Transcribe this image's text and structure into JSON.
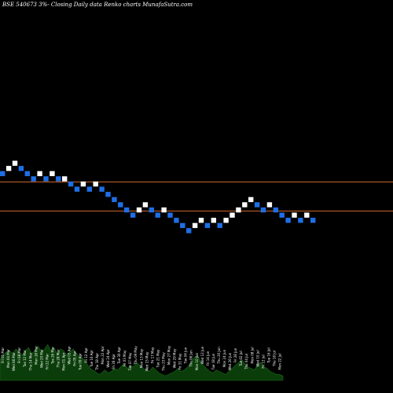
{
  "title": "BSE 540673 3%-  Closing Daily data  Renko  charts MunafaSutra.com",
  "colors": {
    "background": "#000000",
    "up_brick": "#ffffff",
    "down_brick": "#1e6fe6",
    "reference_line": "#c8642a",
    "volume": "#0b3d0b",
    "volume_outline": "#1a6a1a"
  },
  "chart_data": {
    "type": "renko",
    "bricks": [
      {
        "level": 14,
        "dir": "down"
      },
      {
        "level": 15,
        "dir": "up"
      },
      {
        "level": 16,
        "dir": "up"
      },
      {
        "level": 15,
        "dir": "down"
      },
      {
        "level": 14,
        "dir": "down"
      },
      {
        "level": 13,
        "dir": "down"
      },
      {
        "level": 14,
        "dir": "up"
      },
      {
        "level": 13,
        "dir": "down"
      },
      {
        "level": 14,
        "dir": "up"
      },
      {
        "level": 13,
        "dir": "down"
      },
      {
        "level": 13,
        "dir": "up"
      },
      {
        "level": 12,
        "dir": "down"
      },
      {
        "level": 11,
        "dir": "down"
      },
      {
        "level": 12,
        "dir": "up"
      },
      {
        "level": 11,
        "dir": "down"
      },
      {
        "level": 12,
        "dir": "up"
      },
      {
        "level": 11,
        "dir": "down"
      },
      {
        "level": 10,
        "dir": "down"
      },
      {
        "level": 9,
        "dir": "down"
      },
      {
        "level": 8,
        "dir": "down"
      },
      {
        "level": 7,
        "dir": "down"
      },
      {
        "level": 6,
        "dir": "down"
      },
      {
        "level": 7,
        "dir": "up"
      },
      {
        "level": 8,
        "dir": "up"
      },
      {
        "level": 7,
        "dir": "down"
      },
      {
        "level": 6,
        "dir": "down"
      },
      {
        "level": 7,
        "dir": "up"
      },
      {
        "level": 6,
        "dir": "down"
      },
      {
        "level": 5,
        "dir": "down"
      },
      {
        "level": 4,
        "dir": "down"
      },
      {
        "level": 3,
        "dir": "down"
      },
      {
        "level": 4,
        "dir": "up"
      },
      {
        "level": 5,
        "dir": "up"
      },
      {
        "level": 4,
        "dir": "down"
      },
      {
        "level": 5,
        "dir": "up"
      },
      {
        "level": 4,
        "dir": "down"
      },
      {
        "level": 5,
        "dir": "up"
      },
      {
        "level": 6,
        "dir": "up"
      },
      {
        "level": 7,
        "dir": "up"
      },
      {
        "level": 8,
        "dir": "up"
      },
      {
        "level": 9,
        "dir": "up"
      },
      {
        "level": 8,
        "dir": "down"
      },
      {
        "level": 7,
        "dir": "down"
      },
      {
        "level": 8,
        "dir": "up"
      },
      {
        "level": 7,
        "dir": "down"
      },
      {
        "level": 6,
        "dir": "down"
      },
      {
        "level": 5,
        "dir": "down"
      },
      {
        "level": 6,
        "dir": "up"
      },
      {
        "level": 5,
        "dir": "down"
      },
      {
        "level": 6,
        "dir": "up"
      },
      {
        "level": 5,
        "dir": "down"
      }
    ],
    "reference_lines": [
      {
        "name": "upper",
        "level": 12.4
      },
      {
        "name": "lower",
        "level": 6.8
      }
    ],
    "volume": [
      14,
      17,
      19,
      20,
      18,
      21,
      19,
      17,
      20,
      22,
      18,
      20,
      23,
      19,
      21,
      24,
      20,
      22,
      18,
      21,
      20,
      17,
      19,
      21,
      18,
      16,
      15,
      12,
      9,
      7,
      6,
      4,
      5,
      7,
      5,
      6,
      8,
      7,
      9,
      11,
      8,
      10,
      9,
      12,
      10,
      8,
      7,
      6,
      9,
      7,
      5,
      4,
      3,
      4,
      5,
      6,
      8,
      6,
      7,
      9,
      12,
      15,
      17,
      13,
      10,
      8,
      6,
      5,
      7,
      6,
      5,
      4,
      6,
      8,
      10,
      12,
      14,
      11,
      9,
      8,
      7,
      10,
      12,
      9,
      8,
      6,
      5,
      4,
      4,
      3
    ],
    "date_labels": [
      "Fri 01 Mar",
      "Mon 04 Mar",
      "Wed 06 Mar",
      "Fri 08 Mar",
      "Tue 12 Mar",
      "Thu 14 Mar",
      "Mon 18 Mar",
      "Wed 20 Mar",
      "Fri 22 Mar",
      "Tue 26 Mar",
      "Thu 28 Mar",
      "Mon 01 Apr",
      "Wed 03 Apr",
      "Fri 05 Apr",
      "Tue 09 Apr",
      "Fri 12 Apr",
      "Tue 16 Apr",
      "Thu 18 Apr",
      "Mon 22 Apr",
      "Wed 24 Apr",
      "Fri 26 Apr",
      "Tue 30 Apr",
      "Fri 03 May",
      "Tue 07 May",
      "Thu 09 May",
      "Mon 13 May",
      "Wed 15 May",
      "Fri 17 May",
      "Tue 21 May",
      "Thu 23 May",
      "Mon 27 May",
      "Wed 29 May",
      "Fri 31 May",
      "Tue 04 Jun",
      "Thu 06 Jun",
      "Mon 10 Jun",
      "Wed 12 Jun",
      "Fri 14 Jun",
      "Tue 18 Jun",
      "Thu 20 Jun",
      "Mon 24 Jun",
      "Wed 26 Jun",
      "Fri 28 Jun",
      "Tue 02 Jul",
      "Thu 04 Jul",
      "Mon 08 Jul",
      "Wed 10 Jul",
      "Fri 12 Jul",
      "Tue 16 Jul",
      "Thu 18 Jul",
      "Mon 22 Jul"
    ]
  }
}
